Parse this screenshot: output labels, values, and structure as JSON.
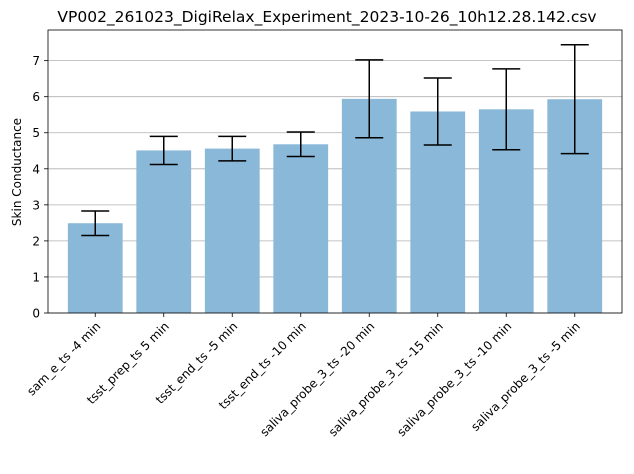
{
  "chart_data": {
    "type": "bar",
    "title": "VP002_261023_DigiRelax_Experiment_2023-10-26_10h12.28.142.csv",
    "xlabel": "",
    "ylabel": "Skin Conductance",
    "ylim": [
      0,
      7.85
    ],
    "yticks": [
      0,
      1,
      2,
      3,
      4,
      5,
      6,
      7
    ],
    "grid": "y",
    "bar_color": "#8ab8d9",
    "error_color": "#000000",
    "grid_color": "#b0b0b0",
    "categories": [
      "sam_e_ts -4 min",
      "tsst_prep_ts 5 min",
      "tsst_end_ts -5 min",
      "tsst_end_ts -10 min",
      "saliva_probe_3_ts -20 min",
      "saliva_probe_3_ts -15 min",
      "saliva_probe_3_ts -10 min",
      "saliva_probe_3_ts -5 min"
    ],
    "values": [
      2.49,
      4.51,
      4.56,
      4.68,
      5.94,
      5.59,
      5.65,
      5.93
    ],
    "errors": [
      0.34,
      0.39,
      0.34,
      0.34,
      1.08,
      0.93,
      1.12,
      1.51
    ]
  }
}
